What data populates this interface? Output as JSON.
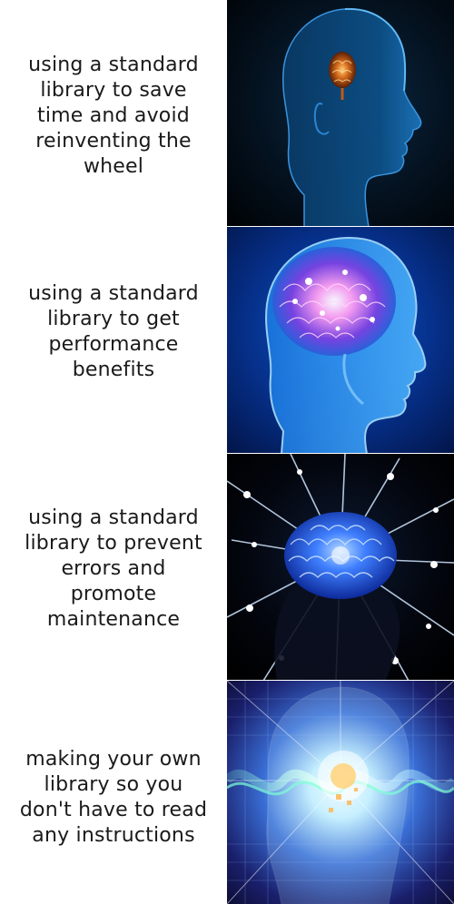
{
  "panels": [
    {
      "caption": "using a standard library to save time and avoid reinventing the wheel",
      "image": "head-with-small-glowing-brain"
    },
    {
      "caption": "using a standard library to get performance benefits",
      "image": "head-with-glowing-pink-brain"
    },
    {
      "caption": "using a standard library to prevent errors and promote maintenance",
      "image": "brain-radiating-light-rays"
    },
    {
      "caption": "making your own library so you don't have to read any instructions",
      "image": "transcendent-cosmic-head"
    }
  ],
  "colors": {
    "caption_background": "#ffffff",
    "caption_text": "#1a1a1a",
    "panel1_glow": "#1e6fbf",
    "panel2_glow": "#3aa0ff",
    "panel3_glow": "#4f8cff",
    "panel4_glow": "#9fe3ff"
  }
}
